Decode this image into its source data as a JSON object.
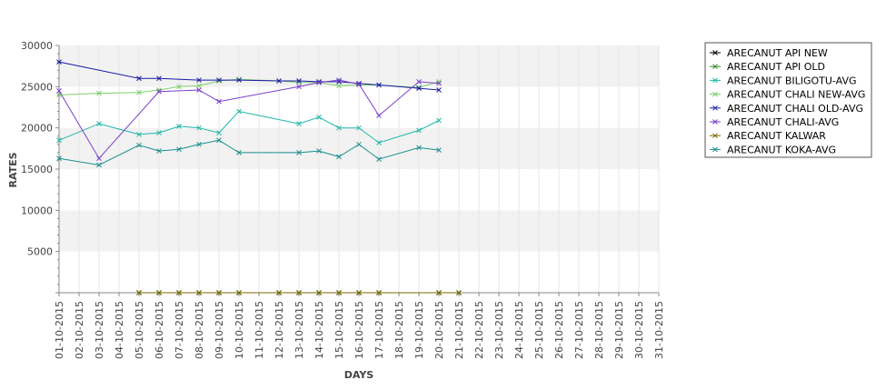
{
  "chart_data": {
    "type": "line",
    "xlabel": "DAYS",
    "ylabel": "RATES",
    "ylim": [
      0,
      30000
    ],
    "y_ticks": [
      5000,
      10000,
      15000,
      20000,
      25000,
      30000
    ],
    "y_tick_labels": [
      "5000",
      "10000",
      "15000",
      "20000",
      "25000",
      "30000"
    ],
    "x_tick_labels": [
      "01-10-2015",
      "02-10-2015",
      "03-10-2015",
      "04-10-2015",
      "05-10-2015",
      "06-10-2015",
      "07-10-2015",
      "08-10-2015",
      "09-10-2015",
      "10-10-2015",
      "11-10-2015",
      "12-10-2015",
      "13-10-2015",
      "14-10-2015",
      "15-10-2015",
      "16-10-2015",
      "17-10-2015",
      "18-10-2015",
      "19-10-2015",
      "20-10-2015",
      "21-10-2015",
      "22-10-2015",
      "23-10-2015",
      "24-10-2015",
      "25-10-2015",
      "26-10-2015",
      "27-10-2015",
      "28-10-2015",
      "29-10-2015",
      "30-10-2015",
      "31-10-2015"
    ],
    "grid": true,
    "legend_position": "right",
    "series": [
      {
        "name": "ARECANUT API NEW",
        "color": "#000000",
        "points": [
          [
            "05-10-2015",
            0
          ],
          [
            "06-10-2015",
            0
          ],
          [
            "07-10-2015",
            0
          ],
          [
            "08-10-2015",
            0
          ],
          [
            "09-10-2015",
            0
          ],
          [
            "10-10-2015",
            0
          ],
          [
            "12-10-2015",
            0
          ],
          [
            "13-10-2015",
            0
          ],
          [
            "14-10-2015",
            0
          ],
          [
            "15-10-2015",
            0
          ],
          [
            "16-10-2015",
            0
          ],
          [
            "17-10-2015",
            0
          ],
          [
            "20-10-2015",
            0
          ],
          [
            "21-10-2015",
            0
          ]
        ]
      },
      {
        "name": "ARECANUT API OLD",
        "color": "#2e8b1e",
        "points": [
          [
            "05-10-2015",
            0
          ],
          [
            "06-10-2015",
            0
          ],
          [
            "07-10-2015",
            0
          ],
          [
            "08-10-2015",
            0
          ],
          [
            "09-10-2015",
            0
          ],
          [
            "10-10-2015",
            0
          ],
          [
            "12-10-2015",
            0
          ],
          [
            "13-10-2015",
            0
          ],
          [
            "14-10-2015",
            0
          ],
          [
            "15-10-2015",
            0
          ],
          [
            "16-10-2015",
            0
          ],
          [
            "17-10-2015",
            0
          ],
          [
            "20-10-2015",
            0
          ],
          [
            "21-10-2015",
            0
          ]
        ]
      },
      {
        "name": "ARECANUT BILIGOTU-AVG",
        "color": "#1fb8a8",
        "points": [
          [
            "01-10-2015",
            18500
          ],
          [
            "03-10-2015",
            20500
          ],
          [
            "05-10-2015",
            19200
          ],
          [
            "06-10-2015",
            19400
          ],
          [
            "07-10-2015",
            20200
          ],
          [
            "08-10-2015",
            20000
          ],
          [
            "09-10-2015",
            19400
          ],
          [
            "10-10-2015",
            22000
          ],
          [
            "13-10-2015",
            20500
          ],
          [
            "14-10-2015",
            21300
          ],
          [
            "15-10-2015",
            20000
          ],
          [
            "16-10-2015",
            20000
          ],
          [
            "17-10-2015",
            18200
          ],
          [
            "19-10-2015",
            19700
          ],
          [
            "20-10-2015",
            20900
          ]
        ]
      },
      {
        "name": "ARECANUT CHALI NEW-AVG",
        "color": "#7ccf6a",
        "points": [
          [
            "01-10-2015",
            24000
          ],
          [
            "03-10-2015",
            24200
          ],
          [
            "05-10-2015",
            24300
          ],
          [
            "06-10-2015",
            24600
          ],
          [
            "07-10-2015",
            25000
          ],
          [
            "08-10-2015",
            25100
          ],
          [
            "09-10-2015",
            25700
          ],
          [
            "10-10-2015",
            25900
          ],
          [
            "12-10-2015",
            25700
          ],
          [
            "13-10-2015",
            25500
          ],
          [
            "14-10-2015",
            25500
          ],
          [
            "15-10-2015",
            25100
          ],
          [
            "16-10-2015",
            25200
          ],
          [
            "17-10-2015",
            25200
          ],
          [
            "19-10-2015",
            24900
          ],
          [
            "20-10-2015",
            25600
          ]
        ]
      },
      {
        "name": "ARECANUT CHALI OLD-AVG",
        "color": "#1a1aa6",
        "points": [
          [
            "01-10-2015",
            28000
          ],
          [
            "05-10-2015",
            26000
          ],
          [
            "06-10-2015",
            26000
          ],
          [
            "08-10-2015",
            25800
          ],
          [
            "09-10-2015",
            25800
          ],
          [
            "10-10-2015",
            25800
          ],
          [
            "12-10-2015",
            25700
          ],
          [
            "13-10-2015",
            25700
          ],
          [
            "14-10-2015",
            25600
          ],
          [
            "15-10-2015",
            25600
          ],
          [
            "16-10-2015",
            25400
          ],
          [
            "17-10-2015",
            25200
          ],
          [
            "19-10-2015",
            24800
          ],
          [
            "20-10-2015",
            24600
          ]
        ]
      },
      {
        "name": "ARECANUT CHALI-AVG",
        "color": "#7a3fc9",
        "points": [
          [
            "01-10-2015",
            24500
          ],
          [
            "03-10-2015",
            16300
          ],
          [
            "06-10-2015",
            24400
          ],
          [
            "08-10-2015",
            24600
          ],
          [
            "09-10-2015",
            23200
          ],
          [
            "13-10-2015",
            25000
          ],
          [
            "14-10-2015",
            25500
          ],
          [
            "15-10-2015",
            25800
          ],
          [
            "16-10-2015",
            25300
          ],
          [
            "17-10-2015",
            21500
          ],
          [
            "19-10-2015",
            25600
          ],
          [
            "20-10-2015",
            25400
          ]
        ]
      },
      {
        "name": "ARECANUT KALWAR",
        "color": "#7a6a00",
        "points": [
          [
            "05-10-2015",
            0
          ],
          [
            "06-10-2015",
            0
          ],
          [
            "07-10-2015",
            0
          ],
          [
            "08-10-2015",
            0
          ],
          [
            "09-10-2015",
            0
          ],
          [
            "10-10-2015",
            0
          ],
          [
            "12-10-2015",
            0
          ],
          [
            "13-10-2015",
            0
          ],
          [
            "14-10-2015",
            0
          ],
          [
            "15-10-2015",
            0
          ],
          [
            "16-10-2015",
            0
          ],
          [
            "17-10-2015",
            0
          ],
          [
            "20-10-2015",
            0
          ],
          [
            "21-10-2015",
            0
          ]
        ]
      },
      {
        "name": "ARECANUT KOKA-AVG",
        "color": "#1a8f8f",
        "points": [
          [
            "01-10-2015",
            16300
          ],
          [
            "03-10-2015",
            15500
          ],
          [
            "05-10-2015",
            17900
          ],
          [
            "06-10-2015",
            17200
          ],
          [
            "07-10-2015",
            17400
          ],
          [
            "08-10-2015",
            18000
          ],
          [
            "09-10-2015",
            18500
          ],
          [
            "10-10-2015",
            17000
          ],
          [
            "13-10-2015",
            17000
          ],
          [
            "14-10-2015",
            17200
          ],
          [
            "15-10-2015",
            16500
          ],
          [
            "16-10-2015",
            18000
          ],
          [
            "17-10-2015",
            16200
          ],
          [
            "19-10-2015",
            17600
          ],
          [
            "20-10-2015",
            17300
          ]
        ]
      }
    ]
  }
}
